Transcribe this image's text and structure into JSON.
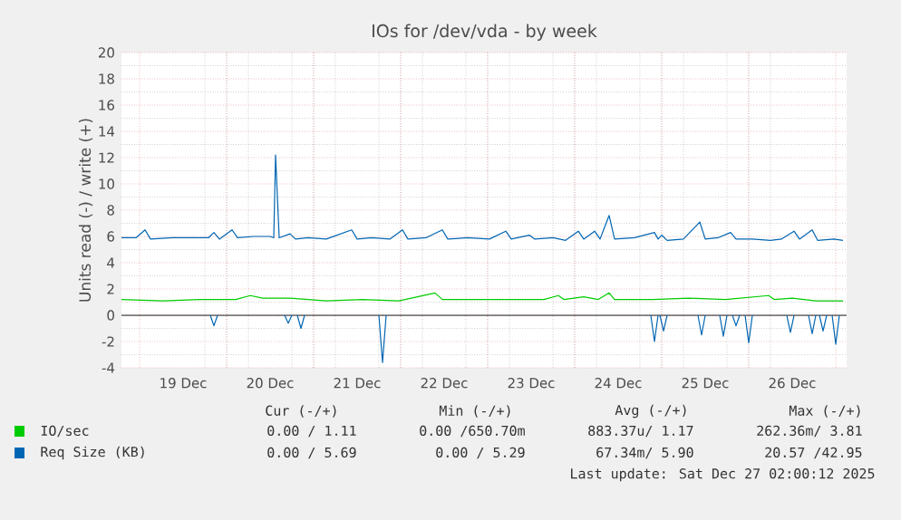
{
  "chart_data": {
    "type": "line",
    "title": "IOs for /dev/vda - by week",
    "ylabel": "Units read (-) / write (+)",
    "xlim": [
      "2025-12-18T19:00",
      "2025-12-27T03:00"
    ],
    "xticks": [
      {
        "value": "2025-12-19T12:00",
        "label": "19 Dec"
      },
      {
        "value": "2025-12-20T12:00",
        "label": "20 Dec"
      },
      {
        "value": "2025-12-21T12:00",
        "label": "21 Dec"
      },
      {
        "value": "2025-12-22T12:00",
        "label": "22 Dec"
      },
      {
        "value": "2025-12-23T12:00",
        "label": "23 Dec"
      },
      {
        "value": "2025-12-24T12:00",
        "label": "24 Dec"
      },
      {
        "value": "2025-12-25T12:00",
        "label": "25 Dec"
      },
      {
        "value": "2025-12-26T12:00",
        "label": "26 Dec"
      }
    ],
    "ylim": [
      -4,
      20
    ],
    "yticks": [
      -4,
      -2,
      0,
      2,
      4,
      6,
      8,
      10,
      12,
      14,
      16,
      18,
      20
    ],
    "grid": true,
    "legend": "bottom",
    "ref_lines": [
      {
        "axis": "y",
        "value": 0,
        "color": "#000000"
      }
    ],
    "series": [
      {
        "name": "IO/sec",
        "color": "#00cc00",
        "x": [
          "2025-12-18T19:00",
          "2025-12-19T06:30",
          "2025-12-19T16:30",
          "2025-12-20T02:30",
          "2025-12-20T06:30",
          "2025-12-20T10:00",
          "2025-12-20T17:30",
          "2025-12-21T03:30",
          "2025-12-21T13:30",
          "2025-12-21T23:30",
          "2025-12-22T09:30",
          "2025-12-22T11:30",
          "2025-12-22T19:30",
          "2025-12-23T05:30",
          "2025-12-23T15:30",
          "2025-12-23T19:30",
          "2025-12-23T21:00",
          "2025-12-24T02:30",
          "2025-12-24T06:30",
          "2025-12-24T09:30",
          "2025-12-24T11:00",
          "2025-12-24T21:30",
          "2025-12-25T07:30",
          "2025-12-25T17:30",
          "2025-12-26T05:30",
          "2025-12-26T07:00",
          "2025-12-26T12:00",
          "2025-12-26T18:30",
          "2025-12-27T02:00"
        ],
        "values": [
          1.2,
          1.1,
          1.2,
          1.2,
          1.5,
          1.3,
          1.3,
          1.1,
          1.2,
          1.1,
          1.7,
          1.2,
          1.2,
          1.2,
          1.2,
          1.5,
          1.2,
          1.4,
          1.2,
          1.7,
          1.2,
          1.2,
          1.3,
          1.2,
          1.5,
          1.2,
          1.3,
          1.1,
          1.1
        ]
      },
      {
        "name": "Req Size (KB)",
        "color": "#0066b3",
        "x": [
          "2025-12-18T19:00",
          "2025-12-18T23:00",
          "2025-12-19T01:30",
          "2025-12-19T03:00",
          "2025-12-19T09:00",
          "2025-12-19T14:00",
          "2025-12-19T19:00",
          "2025-12-19T20:30",
          "2025-12-19T22:00",
          "2025-12-20T01:30",
          "2025-12-20T03:00",
          "2025-12-20T07:30",
          "2025-12-20T12:00",
          "2025-12-20T13:00",
          "2025-12-20T13:30",
          "2025-12-20T14:30",
          "2025-12-20T17:30",
          "2025-12-20T19:00",
          "2025-12-20T22:30",
          "2025-12-21T03:30",
          "2025-12-21T10:30",
          "2025-12-21T12:00",
          "2025-12-21T16:00",
          "2025-12-21T21:00",
          "2025-12-22T00:30",
          "2025-12-22T02:00",
          "2025-12-22T07:00",
          "2025-12-22T11:30",
          "2025-12-22T13:00",
          "2025-12-22T18:30",
          "2025-12-23T00:30",
          "2025-12-23T05:00",
          "2025-12-23T06:30",
          "2025-12-23T11:30",
          "2025-12-23T13:00",
          "2025-12-23T18:00",
          "2025-12-23T21:30",
          "2025-12-24T01:00",
          "2025-12-24T02:30",
          "2025-12-24T05:30",
          "2025-12-24T07:00",
          "2025-12-24T09:30",
          "2025-12-24T11:00",
          "2025-12-24T16:30",
          "2025-12-24T22:00",
          "2025-12-24T23:00",
          "2025-12-25T00:00",
          "2025-12-25T01:30",
          "2025-12-25T06:00",
          "2025-12-25T10:30",
          "2025-12-25T12:00",
          "2025-12-25T15:30",
          "2025-12-25T19:00",
          "2025-12-25T20:30",
          "2025-12-26T01:00",
          "2025-12-26T06:00",
          "2025-12-26T09:00",
          "2025-12-26T12:30",
          "2025-12-26T14:00",
          "2025-12-26T17:30",
          "2025-12-26T19:00",
          "2025-12-26T23:30",
          "2025-12-27T02:00"
        ],
        "values": [
          5.9,
          5.9,
          6.5,
          5.8,
          5.9,
          5.9,
          5.9,
          6.3,
          5.8,
          6.5,
          5.9,
          6.0,
          6.0,
          5.9,
          12.2,
          5.9,
          6.2,
          5.8,
          5.9,
          5.8,
          6.5,
          5.8,
          5.9,
          5.8,
          6.5,
          5.8,
          5.9,
          6.5,
          5.8,
          5.9,
          5.8,
          6.4,
          5.8,
          6.1,
          5.8,
          5.9,
          5.7,
          6.4,
          5.8,
          6.4,
          5.8,
          7.6,
          5.8,
          5.9,
          6.3,
          5.8,
          6.1,
          5.7,
          5.8,
          7.1,
          5.8,
          5.9,
          6.3,
          5.8,
          5.8,
          5.7,
          5.8,
          6.4,
          5.8,
          6.5,
          5.7,
          5.8,
          5.7
        ]
      },
      {
        "color": "#0066b3",
        "x": [
          "2025-12-19T19:30",
          "2025-12-19T20:30",
          "2025-12-19T21:30",
          "2025-12-20T06:00",
          "2025-12-20T16:00",
          "2025-12-20T17:00",
          "2025-12-20T18:00",
          "2025-12-20T18:45",
          "2025-12-20T19:30",
          "2025-12-20T20:30",
          "2025-12-20T21:30",
          "2025-12-21T06:00",
          "2025-12-21T18:00",
          "2025-12-21T19:00",
          "2025-12-21T20:00",
          "2025-12-23T00:00",
          "2025-12-24T21:00",
          "2025-12-24T22:00",
          "2025-12-24T23:00",
          "2025-12-24T23:15",
          "2025-12-24T23:30",
          "2025-12-25T00:30",
          "2025-12-25T01:30",
          "2025-12-25T06:00",
          "2025-12-25T10:00",
          "2025-12-25T11:00",
          "2025-12-25T12:00",
          "2025-12-25T14:00",
          "2025-12-25T16:00",
          "2025-12-25T17:00",
          "2025-12-25T18:00",
          "2025-12-25T18:45",
          "2025-12-25T19:30",
          "2025-12-25T20:30",
          "2025-12-25T21:30",
          "2025-12-25T22:15",
          "2025-12-25T23:00",
          "2025-12-26T00:00",
          "2025-12-26T01:00",
          "2025-12-26T06:00",
          "2025-12-26T10:30",
          "2025-12-26T11:30",
          "2025-12-26T12:30",
          "2025-12-26T14:00",
          "2025-12-26T16:30",
          "2025-12-26T17:30",
          "2025-12-26T18:30",
          "2025-12-26T19:00",
          "2025-12-26T19:30",
          "2025-12-26T20:30",
          "2025-12-26T21:30",
          "2025-12-26T22:15",
          "2025-12-26T23:00",
          "2025-12-27T00:00",
          "2025-12-27T01:00"
        ],
        "values": [
          0,
          -0.8,
          0,
          null,
          0,
          -0.6,
          0,
          null,
          0,
          -1.0,
          0,
          null,
          0,
          -3.6,
          0,
          null,
          0,
          -2.0,
          0,
          null,
          0,
          -1.2,
          0,
          null,
          0,
          -1.5,
          0,
          null,
          0,
          -1.6,
          0,
          null,
          0,
          -0.8,
          0,
          null,
          0,
          -2.1,
          0,
          null,
          0,
          -1.3,
          0,
          null,
          0,
          -1.4,
          0,
          null,
          0,
          -1.2,
          0,
          null,
          0,
          -2.2,
          0
        ]
      }
    ],
    "annotations": [
      "Cur (-/+)",
      "Min (-/+)",
      "Avg (-/+)",
      "Max (-/+)",
      "0.00 / 1.11",
      "0.00 /650.70m",
      "883.37u/ 1.17",
      "262.36m/ 3.81",
      "0.00 / 5.69",
      "0.00 / 5.29",
      "67.34m/ 5.90",
      "20.57 /42.95",
      "Last update: Sat Dec 27 02:00:12 2025"
    ]
  }
}
